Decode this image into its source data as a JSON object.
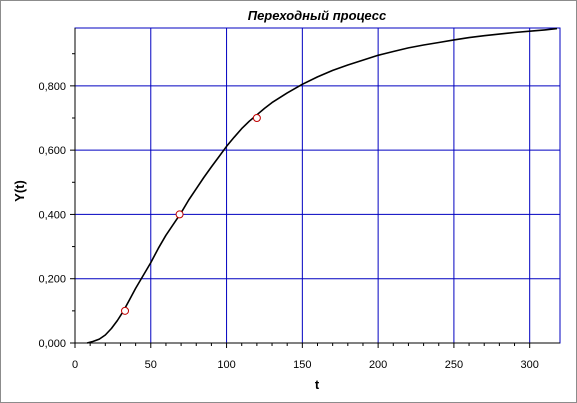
{
  "chart_data": {
    "type": "line",
    "title": "Переходный процесс",
    "xlabel": "t",
    "ylabel": "Y(t)",
    "xlim": [
      0,
      320
    ],
    "ylim": [
      0,
      0.98
    ],
    "x_ticks": [
      0,
      50,
      100,
      150,
      200,
      250,
      300
    ],
    "y_ticks": [
      0.0,
      0.2,
      0.4,
      0.6,
      0.8
    ],
    "y_tick_labels": [
      "0,000",
      "0,200",
      "0,400",
      "0,600",
      "0,800"
    ],
    "grid": true,
    "series": [
      {
        "x": [
          8,
          12,
          16,
          20,
          24,
          28,
          32,
          36,
          40,
          45,
          50,
          55,
          60,
          65,
          70,
          75,
          80,
          85,
          90,
          95,
          100,
          105,
          110,
          115,
          120,
          125,
          130,
          140,
          150,
          160,
          170,
          180,
          190,
          200,
          210,
          220,
          230,
          240,
          250,
          260,
          270,
          280,
          290,
          300,
          310,
          318
        ],
        "y": [
          0.0,
          0.005,
          0.012,
          0.025,
          0.045,
          0.07,
          0.1,
          0.135,
          0.17,
          0.21,
          0.25,
          0.295,
          0.335,
          0.37,
          0.405,
          0.445,
          0.48,
          0.515,
          0.548,
          0.58,
          0.612,
          0.64,
          0.667,
          0.69,
          0.71,
          0.73,
          0.748,
          0.778,
          0.805,
          0.828,
          0.848,
          0.865,
          0.88,
          0.895,
          0.907,
          0.918,
          0.927,
          0.935,
          0.943,
          0.95,
          0.956,
          0.961,
          0.966,
          0.97,
          0.974,
          0.978
        ],
        "color": "#000000"
      }
    ],
    "markers": [
      {
        "x": 33,
        "y": 0.1
      },
      {
        "x": 69,
        "y": 0.4
      },
      {
        "x": 120,
        "y": 0.7
      }
    ],
    "colors": {
      "title": "#1a1a8c",
      "grid": "#0000c0",
      "axis": "#000000",
      "marker_edge": "#c00000",
      "marker_fill": "#ffffff"
    }
  }
}
